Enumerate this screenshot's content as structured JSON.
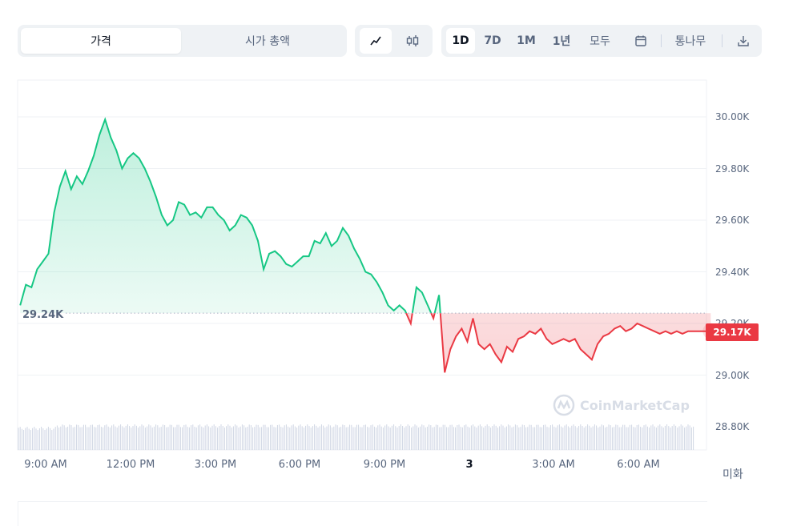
{
  "toolbar": {
    "type_tabs": [
      "가격",
      "시가 총액"
    ],
    "ranges": [
      "1D",
      "7D",
      "1M",
      "1년",
      "모두"
    ],
    "currency_label": "통나무",
    "icons": {
      "line": "line-chart-icon",
      "candle": "candlestick-icon",
      "calendar": "calendar-icon",
      "download": "download-icon"
    }
  },
  "watermark": "CoinMarketCap",
  "unit_label": "미화",
  "chart_data": {
    "type": "area",
    "x_ticks": [
      "9:00 AM",
      "12:00 PM",
      "3:00 PM",
      "6:00 PM",
      "9:00 PM",
      "3",
      "3:00 AM",
      "6:00 AM"
    ],
    "y_ticks": [
      "30.00K",
      "29.80K",
      "29.60K",
      "29.40K",
      "29.20K",
      "29.00K",
      "28.80K"
    ],
    "ylim": [
      28.8,
      30.0
    ],
    "reference_value": 29.24,
    "reference_label": "29.24K",
    "current_value": 29.17,
    "current_label": "29.17K",
    "colors": {
      "above": "#16c784",
      "below": "#ea3943",
      "grid": "#eff2f5",
      "volume": "#cfd6e4"
    },
    "grid": true,
    "series": [
      {
        "x": [
          8.1,
          8.3,
          8.5,
          8.7,
          8.9,
          9.1,
          9.3,
          9.5,
          9.7,
          9.9,
          10.1,
          10.3,
          10.5,
          10.7,
          10.9,
          11.1,
          11.3,
          11.5,
          11.7,
          11.9,
          12.1,
          12.3,
          12.5,
          12.7,
          12.9,
          13.1,
          13.3,
          13.5,
          13.7,
          13.9,
          14.1,
          14.3,
          14.5,
          14.7,
          14.9,
          15.1,
          15.3,
          15.5,
          15.7,
          15.9,
          16.1,
          16.3,
          16.5,
          16.7,
          16.9,
          17.1,
          17.3,
          17.5,
          17.7,
          17.9,
          18.1,
          18.3,
          18.5,
          18.7,
          18.9,
          19.1,
          19.3,
          19.5,
          19.7,
          19.9,
          20.1,
          20.3,
          20.5,
          20.7,
          20.9,
          21.1,
          21.3,
          21.5,
          21.7,
          21.9,
          22.1,
          22.3,
          22.5,
          22.7,
          22.9,
          23.1,
          23.3,
          23.5,
          23.7,
          23.9,
          24.1,
          24.3,
          24.5,
          24.7,
          24.9,
          25.1,
          25.3,
          25.5,
          25.7,
          25.9,
          26.1,
          26.3,
          26.5,
          26.7,
          26.9,
          27.1,
          27.3,
          27.5,
          27.7,
          27.9,
          28.1,
          28.3,
          28.5,
          28.7,
          28.9,
          29.1,
          29.3,
          29.5,
          29.7,
          29.9,
          30.1,
          30.3,
          30.5,
          30.7,
          30.9,
          31.1,
          31.3,
          31.5,
          31.7,
          31.9,
          32.1,
          32.3,
          32.5
        ],
        "values": [
          29.27,
          29.35,
          29.34,
          29.41,
          29.44,
          29.47,
          29.63,
          29.73,
          29.79,
          29.72,
          29.77,
          29.74,
          29.79,
          29.85,
          29.93,
          29.99,
          29.92,
          29.87,
          29.8,
          29.84,
          29.86,
          29.84,
          29.8,
          29.75,
          29.69,
          29.62,
          29.58,
          29.6,
          29.67,
          29.66,
          29.62,
          29.63,
          29.61,
          29.65,
          29.65,
          29.62,
          29.6,
          29.56,
          29.58,
          29.62,
          29.61,
          29.58,
          29.52,
          29.41,
          29.47,
          29.48,
          29.46,
          29.43,
          29.42,
          29.44,
          29.46,
          29.46,
          29.52,
          29.51,
          29.55,
          29.5,
          29.52,
          29.57,
          29.54,
          29.49,
          29.45,
          29.4,
          29.39,
          29.36,
          29.32,
          29.27,
          29.25,
          29.27,
          29.25,
          29.2,
          29.34,
          29.32,
          29.27,
          29.22,
          29.31,
          29.01,
          29.1,
          29.15,
          29.18,
          29.13,
          29.22,
          29.12,
          29.1,
          29.12,
          29.08,
          29.05,
          29.11,
          29.09,
          29.14,
          29.15,
          29.17,
          29.16,
          29.18,
          29.14,
          29.12,
          29.13,
          29.14,
          29.13,
          29.14,
          29.1,
          29.08,
          29.06,
          29.12,
          29.15,
          29.16,
          29.18,
          29.19,
          29.17,
          29.18,
          29.2,
          29.19,
          29.18,
          29.17,
          29.16,
          29.17,
          29.16,
          29.17,
          29.16,
          29.17,
          29.17,
          29.17,
          29.17,
          29.17
        ]
      }
    ],
    "volume_level": 0.24
  }
}
